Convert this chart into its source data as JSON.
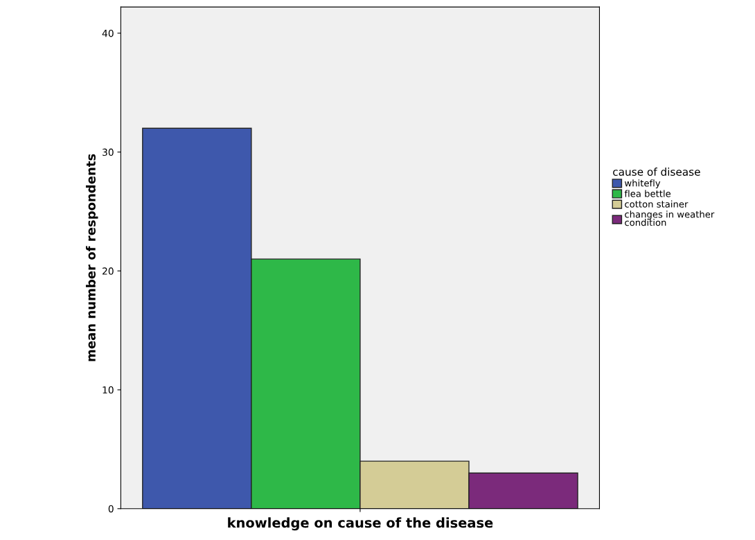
{
  "chart_data": {
    "type": "bar",
    "xlabel": "knowledge on cause of the disease",
    "ylabel": "mean number of respondents",
    "legend_title": "cause of disease",
    "legend": "right",
    "categories": [
      null
    ],
    "series": [
      {
        "name": "whitefly",
        "color": "#3e58ac",
        "values": [
          32
        ]
      },
      {
        "name": "flea bettle",
        "color": "#2eb848",
        "values": [
          21
        ]
      },
      {
        "name": "cotton stainer",
        "color": "#d4cc96",
        "values": [
          4
        ]
      },
      {
        "name": "changes in weather condition",
        "color": "#7b2a7b",
        "values": [
          3
        ]
      }
    ],
    "ylim": [
      0,
      42.2
    ],
    "yticks": [
      0,
      10,
      20,
      30,
      40
    ],
    "grid": false
  }
}
